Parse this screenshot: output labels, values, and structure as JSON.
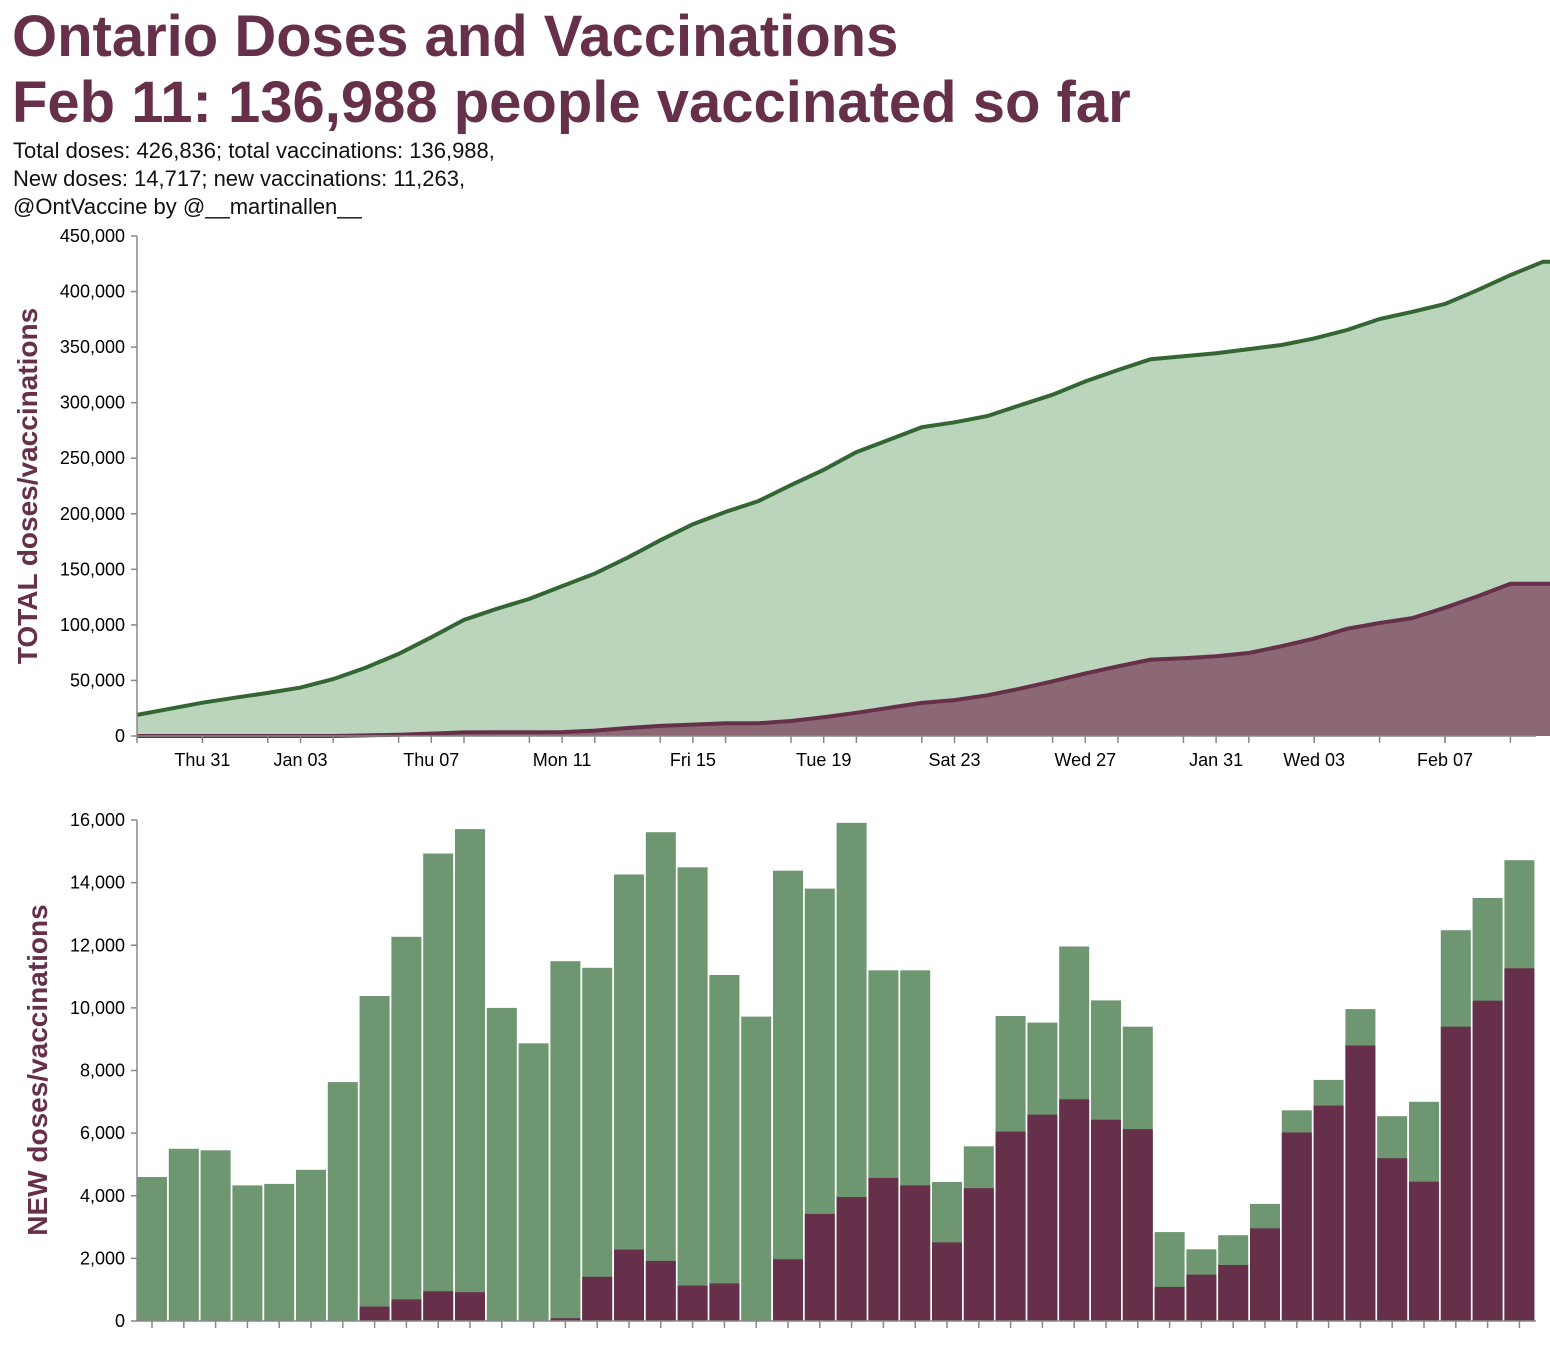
{
  "title": "Ontario Doses and Vaccinations",
  "headline": "Feb 11: 136,988 people vaccinated so far",
  "subtitle": [
    "Total doses: 426,836; total vaccinations: 136,988,",
    "New doses: 14,717; new vaccinations: 11,263,",
    "@OntVaccine by @__martinallen__"
  ],
  "colors": {
    "title": "#66304a",
    "doses_area": "#bad5bb",
    "doses_line": "#336633",
    "vacc_area": "#8b6873",
    "vacc_line": "#66304a",
    "new_doses_bar": "#6e9670",
    "new_vacc_bar": "#66304a"
  },
  "chart_data": [
    {
      "type": "area",
      "ylabel": "TOTAL doses/vaccinations",
      "ylim": [
        0,
        450000
      ],
      "yticks": [
        "0",
        "50,000",
        "100,000",
        "150,000",
        "200,000",
        "250,000",
        "300,000",
        "350,000",
        "400,000",
        "450,000"
      ],
      "xticks": [
        "Thu 31",
        "Jan 03",
        "Thu 07",
        "Mon 11",
        "Fri 15",
        "Tue 19",
        "Sat 23",
        "Wed 27",
        "Jan 31",
        "Wed 03",
        "Feb 07"
      ],
      "dates": [
        "Dec 29",
        "Dec 30",
        "Dec 31",
        "Jan 01",
        "Jan 02",
        "Jan 03",
        "Jan 04",
        "Jan 05",
        "Jan 06",
        "Jan 07",
        "Jan 08",
        "Jan 09",
        "Jan 10",
        "Jan 11",
        "Jan 12",
        "Jan 13",
        "Jan 14",
        "Jan 15",
        "Jan 16",
        "Jan 17",
        "Jan 18",
        "Jan 19",
        "Jan 20",
        "Jan 21",
        "Jan 22",
        "Jan 23",
        "Jan 24",
        "Jan 25",
        "Jan 26",
        "Jan 27",
        "Jan 28",
        "Jan 29",
        "Jan 30",
        "Jan 31",
        "Feb 01",
        "Feb 02",
        "Feb 03",
        "Feb 04",
        "Feb 05",
        "Feb 06",
        "Feb 07",
        "Feb 08",
        "Feb 09",
        "Feb 10",
        "Feb 11"
      ],
      "series": [
        {
          "name": "Total doses",
          "values": [
            19000,
            24500,
            30000,
            34500,
            38800,
            43600,
            51200,
            61600,
            73900,
            88800,
            104500,
            114500,
            123400,
            134900,
            146200,
            160500,
            176100,
            190600,
            201700,
            211400,
            225800,
            239600,
            255500,
            266700,
            277900,
            282300,
            287900,
            297600,
            307200,
            319100,
            329400,
            339100,
            341800,
            344500,
            348200,
            351900,
            357800,
            365400,
            375300,
            381800,
            388800,
            401300,
            414800,
            426836,
            426836
          ]
        },
        {
          "name": "Total vaccinations",
          "values": [
            0,
            0,
            0,
            0,
            0,
            0,
            0,
            500,
            1200,
            2200,
            3200,
            3400,
            3400,
            3500,
            4900,
            7200,
            9100,
            10300,
            11500,
            11500,
            13500,
            16900,
            20900,
            25400,
            29800,
            32300,
            36600,
            42600,
            49200,
            56300,
            62700,
            68800,
            69900,
            71700,
            74700,
            80800,
            87700,
            96500,
            101700,
            106100,
            115500,
            125700,
            136988,
            136988,
            136988
          ]
        }
      ]
    },
    {
      "type": "bar",
      "ylabel": "NEW doses/vaccinations",
      "ylim": [
        0,
        16000
      ],
      "yticks": [
        "0",
        "2,000",
        "4,000",
        "6,000",
        "8,000",
        "10,000",
        "12,000",
        "14,000",
        "16,000"
      ],
      "series": [
        {
          "name": "New doses",
          "values": [
            4600,
            5500,
            5450,
            4330,
            4380,
            4830,
            7630,
            10380,
            12270,
            14930,
            15710,
            10000,
            8870,
            11490,
            11280,
            14260,
            15610,
            14490,
            11050,
            9720,
            14380,
            13810,
            15910,
            11200,
            11200,
            4440,
            5580,
            9740,
            9530,
            11960,
            10240,
            9400,
            2840,
            2290,
            2740,
            3740,
            6730,
            7700,
            9960,
            6540,
            7000,
            12480,
            13510,
            14717
          ]
        },
        {
          "name": "New vaccinations",
          "values": [
            0,
            0,
            0,
            0,
            0,
            0,
            0,
            460,
            690,
            950,
            920,
            0,
            0,
            90,
            1410,
            2280,
            1920,
            1130,
            1200,
            0,
            1970,
            3420,
            3960,
            4570,
            4330,
            2510,
            4240,
            6050,
            6590,
            7080,
            6430,
            6130,
            1090,
            1480,
            1790,
            2960,
            6020,
            6880,
            8800,
            5200,
            4450,
            9400,
            10230,
            11263
          ]
        }
      ]
    }
  ]
}
